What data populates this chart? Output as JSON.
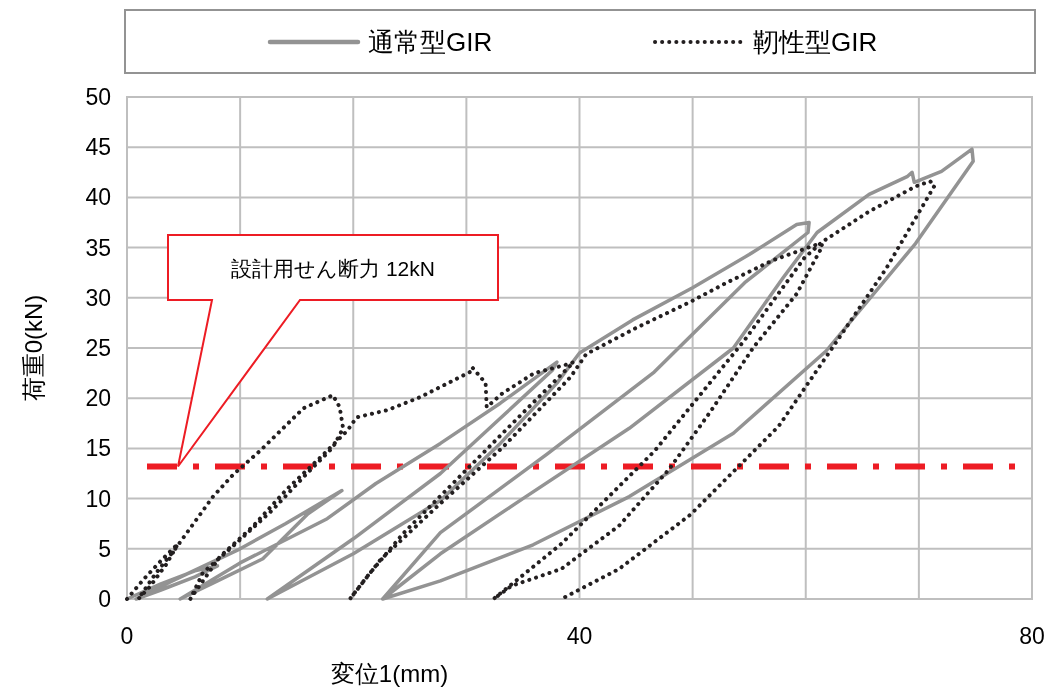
{
  "chart_data": {
    "type": "line",
    "xlabel": "変位1(mm)",
    "ylabel": "荷重0(kN)",
    "xlim": [
      0,
      80
    ],
    "ylim": [
      0,
      50
    ],
    "xticks": [
      0,
      {
        "value": 10,
        "label": null
      },
      {
        "value": 20,
        "label": null
      },
      {
        "value": 30,
        "label": null
      },
      40,
      {
        "value": 50,
        "label": null
      },
      {
        "value": 60,
        "label": null
      },
      {
        "value": 70,
        "label": null
      },
      80
    ],
    "yticks": [
      0,
      5,
      10,
      15,
      20,
      25,
      30,
      35,
      40,
      45,
      50
    ],
    "grid": true,
    "legend": "top",
    "ref_lines": [
      {
        "axis": "y",
        "value": 13.2,
        "color": "#ed1c24",
        "line_style": "dashdot"
      }
    ],
    "annotations": [
      "設計用せん断力 12kN"
    ],
    "series": [
      {
        "name": "通常型GIR",
        "color": "#939393",
        "line_style": "solid",
        "x": [
          0,
          3,
          6,
          8,
          6,
          3,
          0.8,
          4,
          10,
          14,
          19,
          16,
          12,
          8,
          4.7,
          10,
          17.7,
          22,
          27.7,
          33,
          38,
          37.6,
          33,
          27.7,
          20,
          12.4,
          20,
          27.7,
          33,
          38,
          40,
          44.7,
          50,
          55,
          59.2,
          60.3,
          60.2,
          54.6,
          46.6,
          37.1,
          27.7,
          22.6,
          27.7,
          35,
          44.4,
          53.6,
          58,
          61,
          65.6,
          69,
          69.4,
          69.6,
          72,
          74.7,
          74.8,
          69.7,
          61.8,
          53.6,
          44.4,
          35.9,
          27.7,
          22.6
        ],
        "values": [
          0,
          1.5,
          2.8,
          3.3,
          2.2,
          0.9,
          0,
          1.8,
          5,
          7.5,
          10.8,
          8.5,
          4,
          1.8,
          0,
          3.6,
          8,
          11.5,
          15.5,
          19.5,
          23.6,
          22.8,
          18,
          12.5,
          6,
          0,
          4.5,
          9.8,
          15.5,
          21.5,
          24.5,
          27.8,
          31,
          34.3,
          37.3,
          37.5,
          36.5,
          31.5,
          22.6,
          14.4,
          6.6,
          0,
          4.5,
          10,
          17,
          25,
          32,
          36.5,
          40.3,
          42.1,
          42.5,
          41.5,
          42.6,
          44.8,
          43.6,
          35.4,
          24.7,
          16.5,
          10.2,
          5.4,
          1.8,
          0
        ]
      },
      {
        "name": "靭性型GIR",
        "color": "#231f20",
        "line_style": "dotted",
        "x": [
          0,
          1.5,
          3,
          4.5,
          3.5,
          2,
          1,
          2.5,
          4.4,
          7.6,
          9.4,
          11.8,
          15.6,
          18.2,
          18.8,
          19.1,
          18.2,
          15.9,
          12.9,
          9.7,
          6.7,
          5.6,
          8.2,
          11.1,
          14.1,
          17.1,
          19.5,
          20.3,
          23,
          25.9,
          30.3,
          30.5,
          31.7,
          31.8,
          33.2,
          36,
          38.7,
          39.5,
          34.7,
          28.8,
          24.4,
          21.2,
          19.7,
          22.4,
          27.4,
          33.2,
          39.2,
          40.6,
          45,
          49.8,
          53,
          57,
          61.2,
          61.5,
          59.2,
          55.4,
          51.6,
          47.9,
          43.5,
          38.4,
          34,
          32.4,
          38.4,
          46.6,
          54.6,
          59.9,
          61.5,
          65.6,
          69.7,
          71,
          71.4,
          67.1,
          62.4,
          57.6,
          49.8,
          43.5,
          38.4
        ],
        "values": [
          0,
          2,
          3.8,
          5.5,
          3.5,
          1.2,
          0,
          2.5,
          5.2,
          10.2,
          12.4,
          14.8,
          19,
          20.3,
          19.1,
          17,
          15.1,
          12.5,
          8.9,
          5.6,
          2.6,
          0,
          4.2,
          7.2,
          10.9,
          14.1,
          16.8,
          18.1,
          18.8,
          20.1,
          22.6,
          23.1,
          21.5,
          19.1,
          20.5,
          22.5,
          23.3,
          23.6,
          18.2,
          11.5,
          6.5,
          2.2,
          0,
          3.9,
          9.2,
          15.1,
          22.1,
          24.4,
          27,
          29.6,
          31.5,
          33.7,
          35.4,
          35.2,
          30.4,
          25.1,
          18.7,
          12.9,
          7.3,
          3,
          1.3,
          0,
          5.5,
          14.7,
          25.8,
          34,
          35.6,
          38.6,
          41.1,
          41.6,
          41.2,
          32.9,
          25.1,
          17.2,
          8.4,
          3,
          0
        ]
      }
    ]
  }
}
